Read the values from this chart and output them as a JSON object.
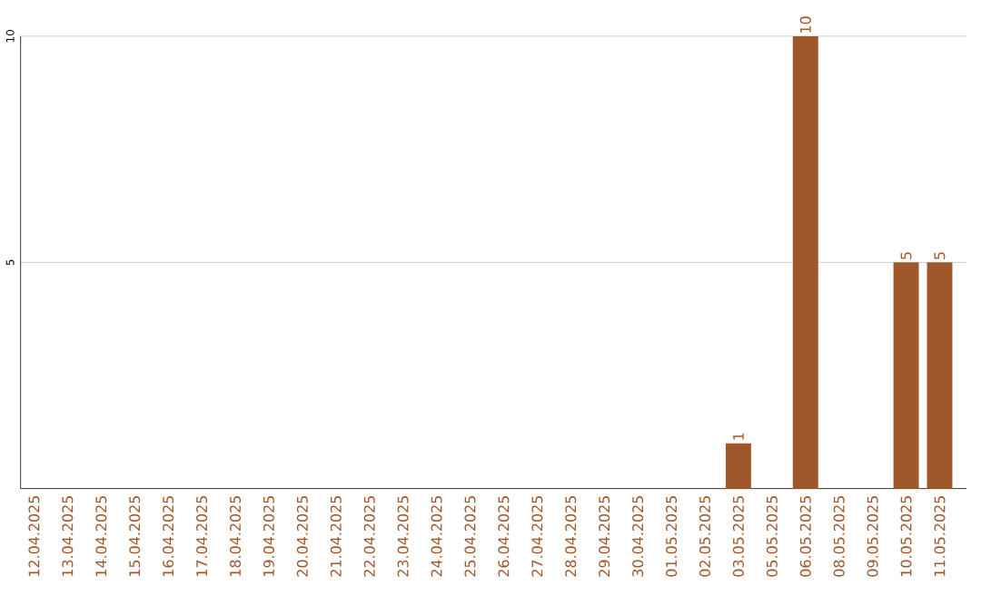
{
  "chart_data": {
    "type": "bar",
    "categories": [
      "12.04.2025",
      "13.04.2025",
      "14.04.2025",
      "15.04.2025",
      "16.04.2025",
      "17.04.2025",
      "18.04.2025",
      "19.04.2025",
      "20.04.2025",
      "21.04.2025",
      "22.04.2025",
      "23.04.2025",
      "24.04.2025",
      "25.04.2025",
      "26.04.2025",
      "27.04.2025",
      "28.04.2025",
      "29.04.2025",
      "30.04.2025",
      "01.05.2025",
      "02.05.2025",
      "03.05.2025",
      "05.05.2025",
      "06.05.2025",
      "08.05.2025",
      "09.05.2025",
      "10.05.2025",
      "11.05.2025"
    ],
    "values": [
      0,
      0,
      0,
      0,
      0,
      0,
      0,
      0,
      0,
      0,
      0,
      0,
      0,
      0,
      0,
      0,
      0,
      0,
      0,
      0,
      0,
      1,
      0,
      10,
      0,
      0,
      5,
      5
    ],
    "value_labels": [
      null,
      null,
      null,
      null,
      null,
      null,
      null,
      null,
      null,
      null,
      null,
      null,
      null,
      null,
      null,
      null,
      null,
      null,
      null,
      null,
      null,
      "1",
      null,
      "10",
      null,
      null,
      "5",
      "5"
    ],
    "color": "#a0582a",
    "ylim": [
      0,
      10
    ],
    "yticks": [
      5,
      10
    ],
    "grid": "y"
  }
}
